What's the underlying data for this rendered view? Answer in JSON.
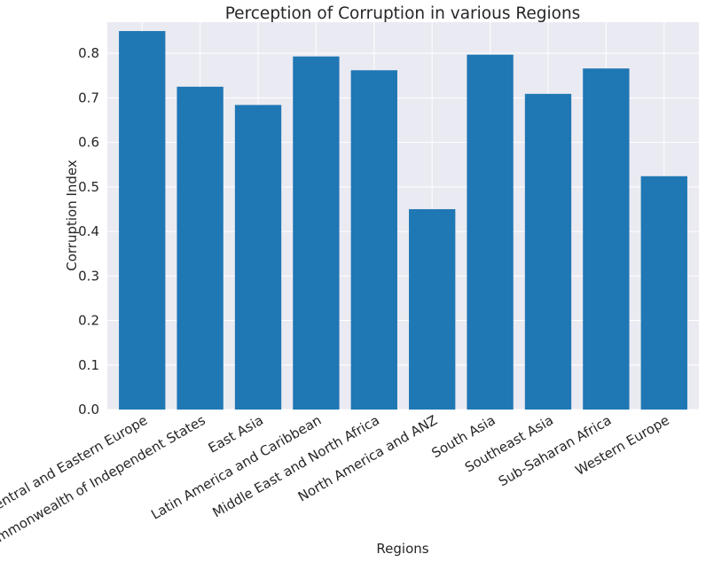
{
  "chart_data": {
    "type": "bar",
    "title": "Perception of Corruption in various Regions",
    "xlabel": "Regions",
    "ylabel": "Corruption Index",
    "categories": [
      "Central and Eastern Europe",
      "Commonwealth of Independent States",
      "East Asia",
      "Latin America and Caribbean",
      "Middle East and North Africa",
      "North America and ANZ",
      "South Asia",
      "Southeast Asia",
      "Sub-Saharan Africa",
      "Western Europe"
    ],
    "values": [
      0.85,
      0.725,
      0.684,
      0.793,
      0.762,
      0.45,
      0.797,
      0.709,
      0.766,
      0.524
    ],
    "ylim": [
      0,
      0.87
    ],
    "yticks": [
      0.0,
      0.1,
      0.2,
      0.3,
      0.4,
      0.5,
      0.6,
      0.7,
      0.8
    ],
    "ytick_labels": [
      "0.0",
      "0.1",
      "0.2",
      "0.3",
      "0.4",
      "0.5",
      "0.6",
      "0.7",
      "0.8"
    ],
    "grid": true,
    "bar_color": "#1f77b4",
    "background_color": "#eaeaf2",
    "grid_color": "#ffffff"
  }
}
